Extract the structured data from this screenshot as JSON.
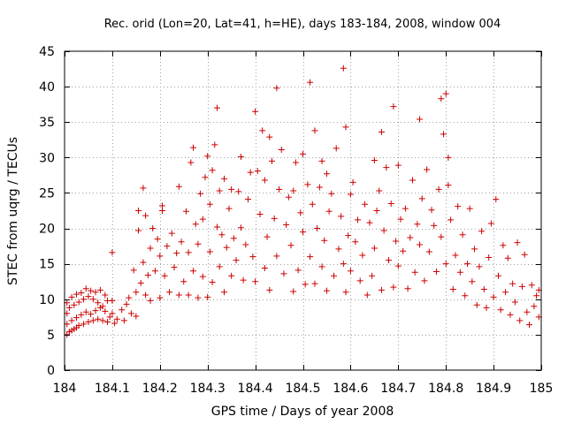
{
  "chart_data": {
    "type": "scatter",
    "title": "Rec. orid (Lon=20, Lat=41, h=HE), days 183-184, 2008, window 004",
    "xlabel": "GPS time / Days of year 2008",
    "ylabel": "STEC from uqrg / TECUs",
    "xlim": [
      184,
      185
    ],
    "ylim": [
      0,
      45
    ],
    "x_ticks": [
      "184",
      "184.1",
      "184.2",
      "184.3",
      "184.4",
      "184.5",
      "184.6",
      "184.7",
      "184.8",
      "184.9",
      "185"
    ],
    "y_ticks": [
      "0",
      "5",
      "10",
      "15",
      "20",
      "25",
      "30",
      "35",
      "40",
      "45"
    ],
    "grid": true,
    "marker": "+",
    "color": "#cc0000",
    "series": [
      {
        "name": "STEC",
        "points": [
          [
            184.005,
            5.0
          ],
          [
            184.01,
            5.4
          ],
          [
            184.015,
            5.6
          ],
          [
            184.02,
            5.8
          ],
          [
            184.025,
            6.0
          ],
          [
            184.03,
            6.3
          ],
          [
            184.04,
            6.5
          ],
          [
            184.05,
            6.8
          ],
          [
            184.06,
            7.0
          ],
          [
            184.07,
            7.2
          ],
          [
            184.08,
            7.0
          ],
          [
            184.09,
            6.8
          ],
          [
            184.005,
            6.5
          ],
          [
            184.015,
            7.0
          ],
          [
            184.025,
            7.4
          ],
          [
            184.035,
            7.8
          ],
          [
            184.045,
            8.2
          ],
          [
            184.055,
            7.9
          ],
          [
            184.065,
            8.4
          ],
          [
            184.075,
            8.8
          ],
          [
            184.085,
            8.3
          ],
          [
            184.095,
            7.5
          ],
          [
            184.005,
            8.0
          ],
          [
            184.01,
            8.8
          ],
          [
            184.02,
            9.2
          ],
          [
            184.03,
            9.6
          ],
          [
            184.04,
            10.0
          ],
          [
            184.05,
            10.4
          ],
          [
            184.06,
            10.0
          ],
          [
            184.07,
            9.5
          ],
          [
            184.08,
            9.0
          ],
          [
            184.09,
            9.8
          ],
          [
            184.005,
            9.5
          ],
          [
            184.015,
            10.3
          ],
          [
            184.025,
            10.7
          ],
          [
            184.035,
            10.9
          ],
          [
            184.045,
            11.5
          ],
          [
            184.055,
            11.2
          ],
          [
            184.065,
            11.0
          ],
          [
            184.075,
            11.3
          ],
          [
            184.085,
            10.6
          ],
          [
            184.1,
            16.6
          ],
          [
            184.1,
            9.8
          ],
          [
            184.1,
            8.0
          ],
          [
            184.105,
            6.6
          ],
          [
            184.11,
            7.2
          ],
          [
            184.12,
            8.5
          ],
          [
            184.125,
            7.0
          ],
          [
            184.13,
            9.3
          ],
          [
            184.135,
            10.2
          ],
          [
            184.14,
            8.0
          ],
          [
            184.145,
            14.1
          ],
          [
            184.15,
            7.6
          ],
          [
            184.15,
            11.0
          ],
          [
            184.155,
            19.7
          ],
          [
            184.155,
            22.5
          ],
          [
            184.16,
            12.3
          ],
          [
            184.165,
            15.2
          ],
          [
            184.165,
            25.7
          ],
          [
            184.17,
            10.6
          ],
          [
            184.17,
            21.8
          ],
          [
            184.175,
            13.4
          ],
          [
            184.18,
            9.8
          ],
          [
            184.18,
            17.2
          ],
          [
            184.185,
            20.0
          ],
          [
            184.19,
            14.0
          ],
          [
            184.195,
            18.5
          ],
          [
            184.2,
            10.2
          ],
          [
            184.2,
            16.1
          ],
          [
            184.205,
            22.5
          ],
          [
            184.205,
            23.2
          ],
          [
            184.21,
            13.3
          ],
          [
            184.215,
            17.5
          ],
          [
            184.22,
            11.0
          ],
          [
            184.225,
            19.3
          ],
          [
            184.23,
            14.5
          ],
          [
            184.235,
            16.5
          ],
          [
            184.24,
            10.6
          ],
          [
            184.24,
            25.9
          ],
          [
            184.245,
            18.1
          ],
          [
            184.25,
            12.5
          ],
          [
            184.255,
            22.4
          ],
          [
            184.26,
            10.6
          ],
          [
            184.26,
            16.6
          ],
          [
            184.265,
            29.3
          ],
          [
            184.27,
            31.4
          ],
          [
            184.27,
            14.0
          ],
          [
            184.275,
            20.6
          ],
          [
            184.28,
            10.2
          ],
          [
            184.28,
            17.8
          ],
          [
            184.285,
            24.9
          ],
          [
            184.29,
            21.3
          ],
          [
            184.29,
            13.2
          ],
          [
            184.295,
            27.2
          ],
          [
            184.3,
            30.2
          ],
          [
            184.3,
            10.3
          ],
          [
            184.305,
            23.4
          ],
          [
            184.305,
            16.7
          ],
          [
            184.31,
            28.2
          ],
          [
            184.31,
            12.4
          ],
          [
            184.315,
            31.8
          ],
          [
            184.32,
            37.0
          ],
          [
            184.32,
            20.2
          ],
          [
            184.325,
            25.3
          ],
          [
            184.325,
            14.6
          ],
          [
            184.33,
            19.1
          ],
          [
            184.335,
            27.0
          ],
          [
            184.335,
            11.0
          ],
          [
            184.34,
            17.3
          ],
          [
            184.345,
            22.8
          ],
          [
            184.35,
            25.5
          ],
          [
            184.35,
            13.3
          ],
          [
            184.355,
            18.6
          ],
          [
            184.36,
            15.5
          ],
          [
            184.365,
            25.2
          ],
          [
            184.37,
            30.1
          ],
          [
            184.37,
            20.1
          ],
          [
            184.375,
            12.7
          ],
          [
            184.38,
            17.7
          ],
          [
            184.385,
            24.1
          ],
          [
            184.39,
            27.9
          ],
          [
            184.395,
            16.0
          ],
          [
            184.4,
            36.5
          ],
          [
            184.4,
            12.5
          ],
          [
            184.405,
            28.1
          ],
          [
            184.41,
            22.0
          ],
          [
            184.415,
            33.8
          ],
          [
            184.42,
            26.8
          ],
          [
            184.42,
            14.4
          ],
          [
            184.425,
            18.8
          ],
          [
            184.43,
            32.9
          ],
          [
            184.43,
            11.3
          ],
          [
            184.435,
            29.5
          ],
          [
            184.44,
            21.4
          ],
          [
            184.445,
            39.8
          ],
          [
            184.445,
            16.1
          ],
          [
            184.45,
            25.5
          ],
          [
            184.455,
            31.1
          ],
          [
            184.46,
            13.6
          ],
          [
            184.465,
            20.5
          ],
          [
            184.47,
            24.4
          ],
          [
            184.475,
            17.6
          ],
          [
            184.48,
            11.1
          ],
          [
            184.48,
            25.3
          ],
          [
            184.485,
            29.3
          ],
          [
            184.49,
            14.1
          ],
          [
            184.495,
            22.2
          ],
          [
            184.5,
            30.5
          ],
          [
            184.5,
            19.5
          ],
          [
            184.505,
            12.1
          ],
          [
            184.51,
            26.2
          ],
          [
            184.515,
            40.6
          ],
          [
            184.515,
            16.0
          ],
          [
            184.52,
            23.4
          ],
          [
            184.525,
            33.8
          ],
          [
            184.525,
            12.2
          ],
          [
            184.53,
            20.0
          ],
          [
            184.535,
            25.8
          ],
          [
            184.54,
            29.5
          ],
          [
            184.54,
            14.6
          ],
          [
            184.545,
            18.3
          ],
          [
            184.55,
            27.7
          ],
          [
            184.55,
            11.2
          ],
          [
            184.555,
            22.4
          ],
          [
            184.56,
            24.9
          ],
          [
            184.565,
            13.3
          ],
          [
            184.57,
            31.3
          ],
          [
            184.575,
            17.1
          ],
          [
            184.58,
            21.7
          ],
          [
            184.585,
            42.6
          ],
          [
            184.585,
            15.0
          ],
          [
            184.59,
            34.3
          ],
          [
            184.59,
            11.0
          ],
          [
            184.595,
            19.0
          ],
          [
            184.6,
            24.8
          ],
          [
            184.6,
            14.0
          ],
          [
            184.605,
            26.5
          ],
          [
            184.61,
            18.1
          ],
          [
            184.615,
            21.2
          ],
          [
            184.62,
            12.6
          ],
          [
            184.625,
            16.2
          ],
          [
            184.63,
            23.4
          ],
          [
            184.635,
            10.6
          ],
          [
            184.64,
            20.8
          ],
          [
            184.645,
            13.3
          ],
          [
            184.65,
            29.6
          ],
          [
            184.65,
            17.2
          ],
          [
            184.655,
            22.5
          ],
          [
            184.66,
            25.3
          ],
          [
            184.665,
            33.6
          ],
          [
            184.665,
            11.3
          ],
          [
            184.67,
            19.7
          ],
          [
            184.675,
            28.6
          ],
          [
            184.68,
            15.5
          ],
          [
            184.685,
            23.5
          ],
          [
            184.69,
            37.2
          ],
          [
            184.69,
            11.7
          ],
          [
            184.695,
            18.2
          ],
          [
            184.7,
            28.9
          ],
          [
            184.7,
            14.7
          ],
          [
            184.705,
            21.3
          ],
          [
            184.71,
            16.8
          ],
          [
            184.715,
            22.8
          ],
          [
            184.72,
            11.5
          ],
          [
            184.725,
            18.7
          ],
          [
            184.73,
            26.8
          ],
          [
            184.735,
            13.8
          ],
          [
            184.74,
            20.6
          ],
          [
            184.745,
            35.4
          ],
          [
            184.745,
            17.7
          ],
          [
            184.75,
            24.2
          ],
          [
            184.755,
            12.6
          ],
          [
            184.76,
            28.3
          ],
          [
            184.765,
            16.7
          ],
          [
            184.77,
            22.6
          ],
          [
            184.775,
            20.4
          ],
          [
            184.78,
            13.9
          ],
          [
            184.785,
            25.5
          ],
          [
            184.79,
            38.3
          ],
          [
            184.79,
            18.8
          ],
          [
            184.795,
            33.3
          ],
          [
            184.8,
            39.0
          ],
          [
            184.8,
            15.0
          ],
          [
            184.805,
            26.1
          ],
          [
            184.805,
            30.0
          ],
          [
            184.81,
            21.2
          ],
          [
            184.815,
            11.4
          ],
          [
            184.82,
            16.2
          ],
          [
            184.825,
            23.1
          ],
          [
            184.83,
            13.8
          ],
          [
            184.835,
            19.1
          ],
          [
            184.84,
            10.5
          ],
          [
            184.845,
            15.0
          ],
          [
            184.85,
            22.8
          ],
          [
            184.855,
            12.5
          ],
          [
            184.86,
            17.1
          ],
          [
            184.865,
            9.2
          ],
          [
            184.87,
            14.6
          ],
          [
            184.875,
            19.6
          ],
          [
            184.88,
            11.4
          ],
          [
            184.885,
            8.8
          ],
          [
            184.89,
            15.9
          ],
          [
            184.895,
            20.7
          ],
          [
            184.9,
            10.3
          ],
          [
            184.905,
            24.1
          ],
          [
            184.91,
            13.3
          ],
          [
            184.915,
            8.5
          ],
          [
            184.92,
            17.6
          ],
          [
            184.925,
            11.0
          ],
          [
            184.93,
            15.8
          ],
          [
            184.935,
            7.8
          ],
          [
            184.94,
            12.2
          ],
          [
            184.945,
            9.6
          ],
          [
            184.95,
            18.0
          ],
          [
            184.955,
            7.0
          ],
          [
            184.96,
            11.8
          ],
          [
            184.965,
            16.3
          ],
          [
            184.97,
            8.2
          ],
          [
            184.975,
            6.4
          ],
          [
            184.98,
            12.0
          ],
          [
            184.985,
            9.0
          ],
          [
            184.99,
            10.5
          ],
          [
            184.995,
            7.5
          ],
          [
            184.995,
            11.3
          ]
        ]
      }
    ]
  }
}
